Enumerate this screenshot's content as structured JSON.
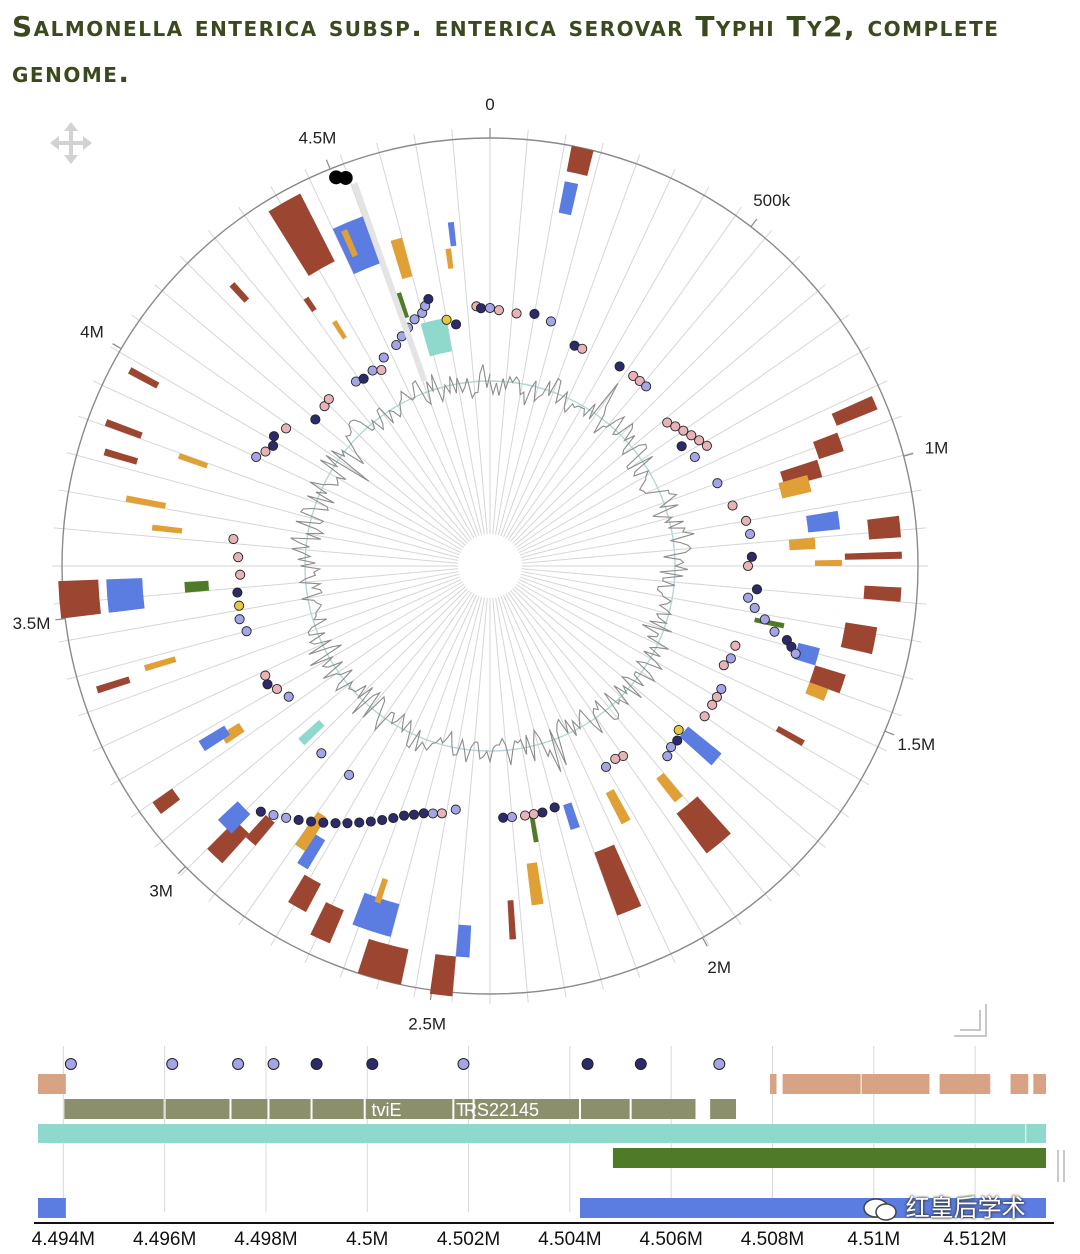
{
  "title": "Salmonella enterica subsp. enterica serovar Typhi Ty2, complete genome.",
  "circular": {
    "genome_length": 4791961,
    "tick_labels": [
      {
        "value": 0,
        "label": "0"
      },
      {
        "value": 500000,
        "label": "500k"
      },
      {
        "value": 1000000,
        "label": "1M"
      },
      {
        "value": 1500000,
        "label": "1.5M"
      },
      {
        "value": 2000000,
        "label": "2M"
      },
      {
        "value": 2500000,
        "label": "2.5M"
      },
      {
        "value": 3000000,
        "label": "3M"
      },
      {
        "value": 3500000,
        "label": "3.5M"
      },
      {
        "value": 4000000,
        "label": "4M"
      },
      {
        "value": 4500000,
        "label": "4.5M"
      }
    ]
  },
  "linear": {
    "range": [
      4493500,
      4513400
    ],
    "ticks": [
      {
        "value": 4494000,
        "label": "4.494M"
      },
      {
        "value": 4496000,
        "label": "4.496M"
      },
      {
        "value": 4498000,
        "label": "4.498M"
      },
      {
        "value": 4500000,
        "label": "4.5M"
      },
      {
        "value": 4502000,
        "label": "4.502M"
      },
      {
        "value": 4504000,
        "label": "4.504M"
      },
      {
        "value": 4506000,
        "label": "4.506M"
      },
      {
        "value": 4508000,
        "label": "4.508M"
      },
      {
        "value": 4510000,
        "label": "4.51M"
      },
      {
        "value": 4512000,
        "label": "4.512M"
      }
    ],
    "gene_labels": [
      {
        "position": 4500380,
        "label": "tviE"
      },
      {
        "position": 4501860,
        "label": "T"
      },
      {
        "position": 4502650,
        "label": "RS22145"
      }
    ]
  },
  "watermark": "红皇后学术",
  "colors": {
    "brown": "#9c4530",
    "blue": "#5b7ce0",
    "orange": "#e0a035",
    "green": "#4f7b28",
    "teal": "#8fd8cc",
    "navy": "#2c2a6a",
    "lavender": "#a4a4e6",
    "pink": "#e8b3b8",
    "yellow": "#e8c840",
    "olive": "#8c8f6c",
    "salmon": "#d8a284",
    "gc_line": "#8c8c8c",
    "gc_ring": "#b4d6d6",
    "title": "#3b4a1e"
  }
}
